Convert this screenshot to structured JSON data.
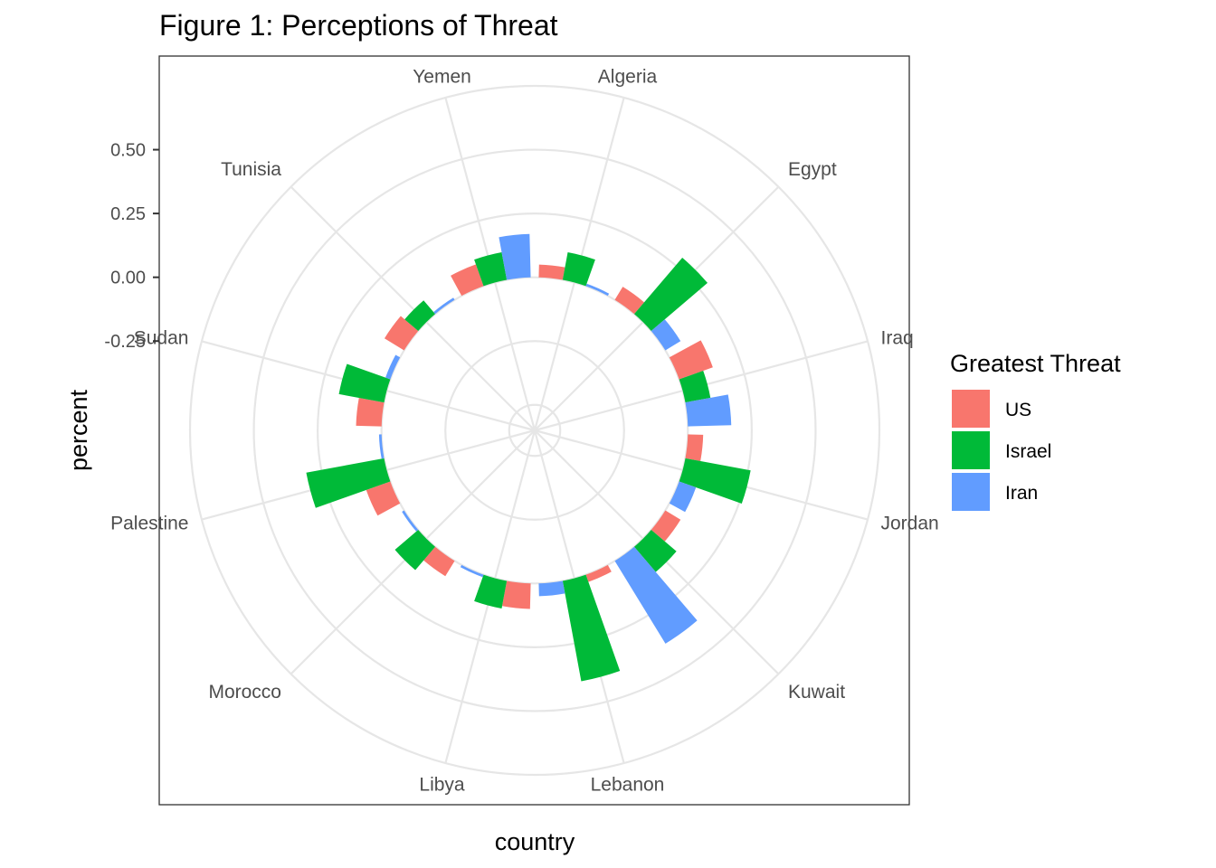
{
  "chart_data": {
    "type": "bar",
    "coord": "polar",
    "title": "Figure 1: Perceptions of Threat",
    "xlabel": "country",
    "ylabel": "percent",
    "y_ticks": [
      0.5,
      0.25,
      0.0,
      -0.25
    ],
    "y_tick_labels": [
      "0.50",
      "0.25",
      "0.00",
      "-0.25"
    ],
    "ylim": [
      -0.6,
      0.75
    ],
    "grid": true,
    "legend_position": "right",
    "categories": [
      "Algeria",
      "Egypt",
      "Iraq",
      "Jordan",
      "Kuwait",
      "Lebanon",
      "Libya",
      "Morocco",
      "Palestine",
      "Sudan",
      "Tunisia",
      "Yemen"
    ],
    "legend": {
      "title": "Greatest Threat",
      "items": [
        {
          "label": "US",
          "color": "#F8766D"
        },
        {
          "label": "Israel",
          "color": "#00BA38"
        },
        {
          "label": "Iran",
          "color": "#619CFF"
        }
      ]
    },
    "series": [
      {
        "name": "US",
        "color": "#F8766D",
        "values": [
          0.05,
          0.06,
          0.14,
          0.06,
          0.07,
          0.03,
          0.1,
          0.07,
          0.1,
          0.1,
          0.09,
          0.09
        ]
      },
      {
        "name": "Israel",
        "color": "#00BA38",
        "values": [
          0.11,
          0.29,
          0.1,
          0.26,
          0.13,
          0.4,
          0.11,
          0.12,
          0.31,
          0.18,
          0.07,
          0.11
        ]
      },
      {
        "name": "Iran",
        "color": "#619CFF",
        "values": [
          0.01,
          0.07,
          0.17,
          0.07,
          0.38,
          0.05,
          0.01,
          0.01,
          0.01,
          0.02,
          0.01,
          0.17
        ]
      }
    ]
  }
}
